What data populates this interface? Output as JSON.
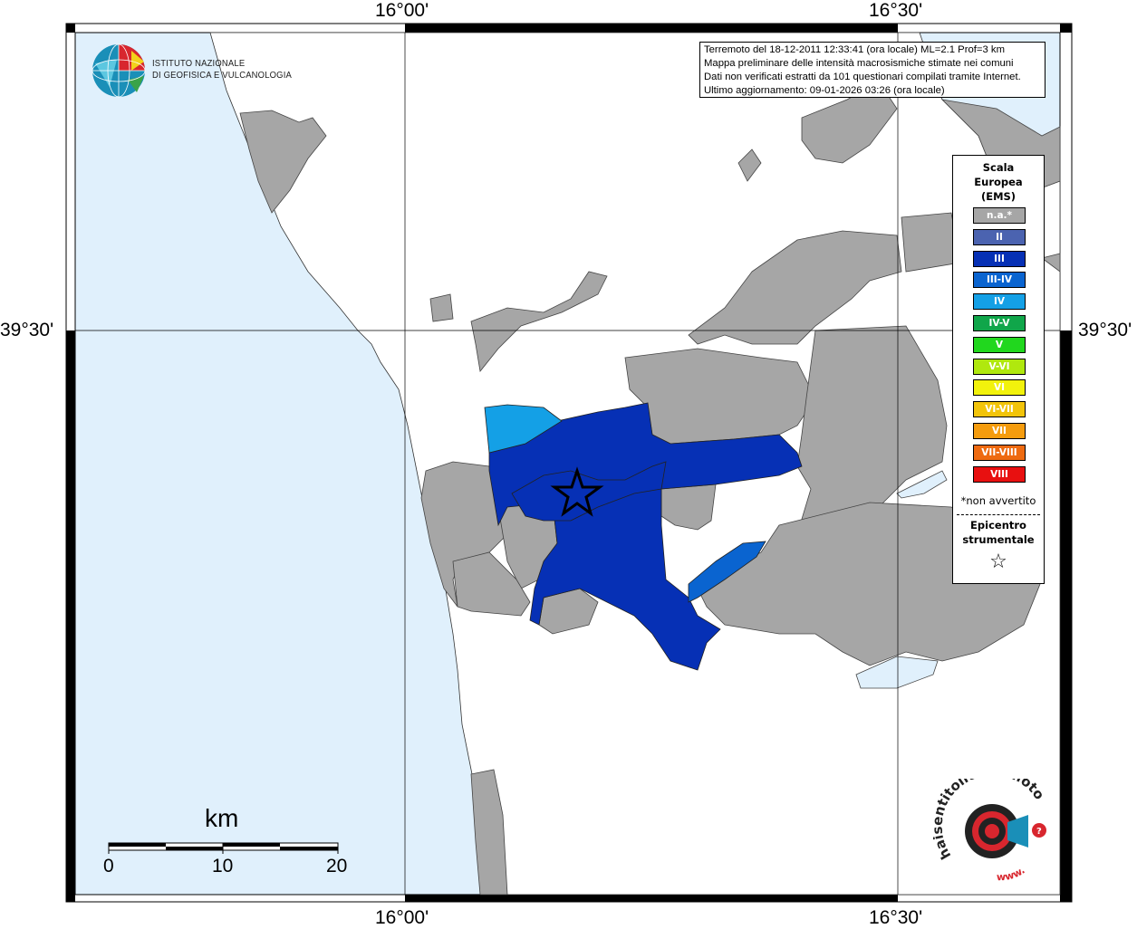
{
  "map": {
    "title_lines": [
      "Terremoto del 18-12-2011 12:33:41 (ora locale) ML=2.1 Prof=3 km",
      "Mappa preliminare delle intensità macrosismiche stimate nei comuni",
      "Dati non verificati estratti da 101 questionari compilati tramite Internet.",
      "Ultimo aggiornamento: 09-01-2026 03:26 (ora locale)"
    ],
    "coords": {
      "top_left": "16°00'",
      "top_right": "16°30'",
      "bottom_left": "16°00'",
      "bottom_right": "16°30'",
      "left_lat": "39°30'",
      "right_lat": "39°30'"
    },
    "colors": {
      "sea": "#e0f0fc",
      "land": "#ffffff",
      "na_gray": "#a6a6a6",
      "intensity_III": "#0630b5",
      "intensity_III_IV": "#0a64d0",
      "intensity_IV": "#14a0e6"
    }
  },
  "institute": {
    "name_line1": "ISTITUTO NAZIONALE",
    "name_line2": "DI GEOFISICA E VULCANOLOGIA"
  },
  "legend": {
    "title_lines": [
      "Scala",
      "Europea",
      "(EMS)"
    ],
    "items": [
      {
        "label": "n.a.*",
        "color": "#a6a6a6"
      },
      {
        "label": "II",
        "color": "#4b63b0"
      },
      {
        "label": "III",
        "color": "#0630b5"
      },
      {
        "label": "III-IV",
        "color": "#0a64d0"
      },
      {
        "label": "IV",
        "color": "#14a0e6"
      },
      {
        "label": "IV-V",
        "color": "#10a64a"
      },
      {
        "label": "V",
        "color": "#21d71e"
      },
      {
        "label": "V-VI",
        "color": "#b0e80e"
      },
      {
        "label": "VI",
        "color": "#f2f20c"
      },
      {
        "label": "VI-VII",
        "color": "#f2c40a"
      },
      {
        "label": "VII",
        "color": "#f59c0e"
      },
      {
        "label": "VII-VIII",
        "color": "#ee6a10"
      },
      {
        "label": "VIII",
        "color": "#e81010"
      }
    ],
    "note": "*non avvertito",
    "epicenter_lines": [
      "Epicentro",
      "strumentale"
    ],
    "epicenter_symbol": "☆"
  },
  "scale_bar": {
    "unit": "km",
    "labels": [
      "0",
      "10",
      "20"
    ]
  },
  "branding": {
    "site_text": "haisentitoilterremoto.it",
    "www": "www."
  }
}
